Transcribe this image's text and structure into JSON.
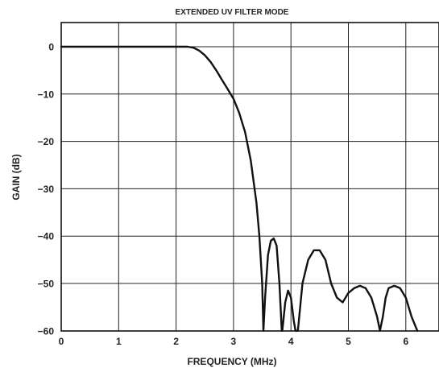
{
  "chart_data": {
    "type": "line",
    "title": "EXTENDED UV FILTER MODE",
    "xlabel": "FREQUENCY (MHz)",
    "ylabel": "GAIN (dB)",
    "xlim": [
      0,
      6.5
    ],
    "ylim": [
      -60,
      4
    ],
    "xticks": [
      "0",
      "1",
      "2",
      "3",
      "4",
      "5",
      "6"
    ],
    "yticks": [
      "0",
      "−10",
      "−20",
      "−30",
      "−40",
      "−50",
      "−60"
    ],
    "grid": true,
    "colors": {
      "line": "#111111",
      "grid": "#222222",
      "border": "#111111"
    },
    "series": [
      {
        "x": [
          0,
          1,
          2,
          2.2,
          2.3,
          2.4,
          2.5,
          2.6,
          2.7,
          2.8,
          2.9,
          3.0,
          3.1,
          3.2,
          3.3,
          3.4,
          3.45,
          3.5,
          3.52,
          3.55,
          3.6,
          3.65,
          3.7,
          3.75,
          3.8,
          3.84,
          3.85,
          3.9,
          3.95,
          4.0,
          4.05,
          4.08,
          4.12,
          4.2,
          4.3,
          4.4,
          4.5,
          4.6,
          4.7,
          4.8,
          4.9,
          5.0,
          5.1,
          5.2,
          5.3,
          5.4,
          5.5,
          5.55,
          5.6,
          5.65,
          5.7,
          5.8,
          5.9,
          6.0,
          6.1,
          6.2
        ],
        "y": [
          0,
          0,
          0,
          0,
          -0.2,
          -0.8,
          -1.8,
          -3.2,
          -5,
          -7,
          -9,
          -11,
          -14,
          -18,
          -24,
          -33,
          -40,
          -50,
          -60,
          -53,
          -44,
          -41,
          -40.5,
          -42,
          -50,
          -60,
          -60,
          -54,
          -51.5,
          -53,
          -58,
          -60,
          -60,
          -50,
          -45,
          -43,
          -43,
          -45,
          -50,
          -53,
          -54,
          -52,
          -51,
          -50.5,
          -51,
          -53,
          -57,
          -60,
          -57,
          -53,
          -51,
          -50.5,
          -51,
          -53,
          -57,
          -60
        ]
      }
    ]
  }
}
